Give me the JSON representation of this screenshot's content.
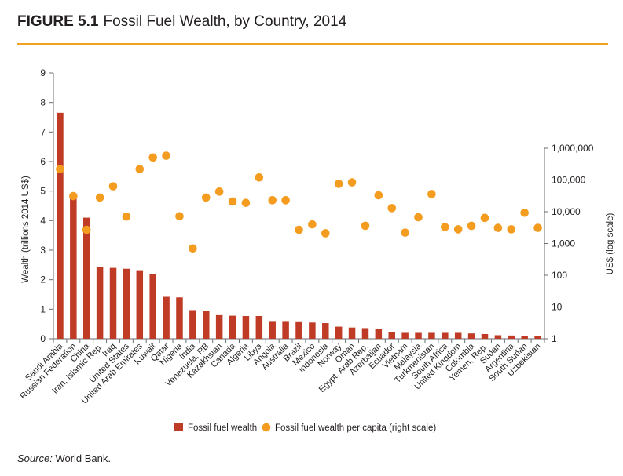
{
  "figure": {
    "number": "FIGURE 5.1",
    "title": "Fossil Fuel Wealth, by Country, 2014"
  },
  "source": {
    "label": "Source:",
    "text": "World Bank."
  },
  "colors": {
    "bar": "#bf3b26",
    "dot": "#f39c1f",
    "accent_rule": "#f4a11f"
  },
  "chart_data": {
    "type": "bar",
    "categories": [
      "Saudi Arabia",
      "Russian Federation",
      "China",
      "Iran, Islamic Rep.",
      "Iraq",
      "United States",
      "United Arab Emirates",
      "Kuwait",
      "Qatar",
      "Nigeria",
      "India",
      "Venezuela, RB",
      "Kazakhstan",
      "Canada",
      "Algeria",
      "Libya",
      "Angola",
      "Australia",
      "Brazil",
      "Mexico",
      "Indonesia",
      "Norway",
      "Oman",
      "Egypt, Arab Rep.",
      "Azerbaijan",
      "Ecuador",
      "Vietnam",
      "Malaysia",
      "Turkmenistan",
      "South Africa",
      "United Kingdom",
      "Colombia",
      "Yemen, Rep.",
      "Sudan",
      "Argentina",
      "South Sudan",
      "Uzbekistan"
    ],
    "series": [
      {
        "name": "Fossil fuel wealth",
        "type": "bar",
        "axis": "left",
        "values": [
          7.65,
          4.9,
          4.1,
          2.42,
          2.4,
          2.37,
          2.32,
          2.2,
          1.42,
          1.4,
          0.97,
          0.94,
          0.8,
          0.78,
          0.77,
          0.77,
          0.6,
          0.6,
          0.59,
          0.55,
          0.53,
          0.41,
          0.38,
          0.36,
          0.33,
          0.22,
          0.2,
          0.2,
          0.2,
          0.2,
          0.2,
          0.18,
          0.16,
          0.12,
          0.11,
          0.1,
          0.09
        ]
      },
      {
        "name": "Fossil fuel wealth per capita (right scale)",
        "type": "scatter",
        "axis": "right",
        "values": [
          220000,
          31000,
          2700,
          28000,
          63000,
          7000,
          220000,
          510000,
          580000,
          7200,
          700,
          28000,
          43000,
          21000,
          19000,
          120000,
          23000,
          23000,
          2700,
          4000,
          2100,
          76000,
          84000,
          3600,
          33000,
          13000,
          2200,
          6700,
          36000,
          3300,
          2800,
          3600,
          6400,
          3100,
          2800,
          9300,
          3100
        ]
      }
    ],
    "ylabel": "Wealth (trillions 2014 US$)",
    "ylim": [
      0,
      9
    ],
    "yticks": [
      "0",
      "1",
      "2",
      "3",
      "4",
      "5",
      "6",
      "7",
      "8",
      "9"
    ],
    "y2label": "US$ (log scale)",
    "y2scale": "log",
    "y2lim": [
      1,
      1000000
    ],
    "y2ticks": [
      {
        "value": 1,
        "label": "1"
      },
      {
        "value": 10,
        "label": "10"
      },
      {
        "value": 100,
        "label": "100"
      },
      {
        "value": 1000,
        "label": "1,000"
      },
      {
        "value": 10000,
        "label": "10,000"
      },
      {
        "value": 100000,
        "label": "100,000"
      },
      {
        "value": 1000000,
        "label": "1,000,000"
      }
    ],
    "legend_position": "bottom",
    "grid": false
  }
}
